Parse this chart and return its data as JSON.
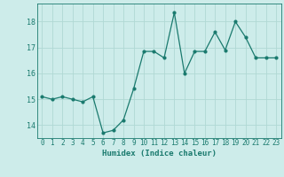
{
  "x": [
    0,
    1,
    2,
    3,
    4,
    5,
    6,
    7,
    8,
    9,
    10,
    11,
    12,
    13,
    14,
    15,
    16,
    17,
    18,
    19,
    20,
    21,
    22,
    23
  ],
  "y": [
    15.1,
    15.0,
    15.1,
    15.0,
    14.9,
    15.1,
    13.7,
    13.8,
    14.2,
    15.4,
    16.85,
    16.85,
    16.6,
    18.35,
    16.0,
    16.85,
    16.85,
    17.6,
    16.9,
    18.0,
    17.4,
    16.6,
    16.6,
    16.6
  ],
  "line_color": "#1a7a6e",
  "marker": "o",
  "marker_size": 2.0,
  "bg_color": "#cdecea",
  "grid_color": "#b0d8d4",
  "xlabel": "Humidex (Indice chaleur)",
  "ylim": [
    13.5,
    18.7
  ],
  "xlim": [
    -0.5,
    23.5
  ],
  "yticks": [
    14,
    15,
    16,
    17,
    18
  ],
  "xticks": [
    0,
    1,
    2,
    3,
    4,
    5,
    6,
    7,
    8,
    9,
    10,
    11,
    12,
    13,
    14,
    15,
    16,
    17,
    18,
    19,
    20,
    21,
    22,
    23
  ],
  "tick_color": "#1a7a6e",
  "label_color": "#1a7a6e",
  "tick_fontsize": 5.5,
  "xlabel_fontsize": 6.5,
  "linewidth": 0.9
}
